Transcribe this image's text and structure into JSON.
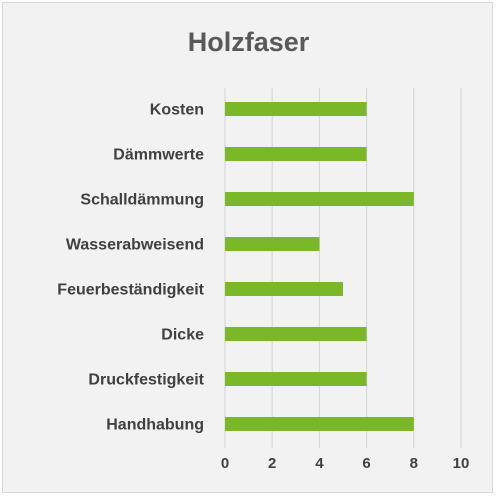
{
  "chart_data": {
    "type": "bar",
    "orientation": "horizontal",
    "title": "Holzfaser",
    "categories": [
      "Kosten",
      "Dämmwerte",
      "Schalldämmung",
      "Wasserabweisend",
      "Feuerbeständigkeit",
      "Dicke",
      "Druckfestigkeit",
      "Handhabung"
    ],
    "values": [
      6,
      6,
      8,
      4,
      5,
      6,
      6,
      8
    ],
    "xlim": [
      0,
      10
    ],
    "xticks": [
      "0",
      "2",
      "4",
      "6",
      "8",
      "10"
    ],
    "xlabel": "",
    "ylabel": "",
    "grid": "vertical",
    "legend": "none",
    "bar_color": "#7ab829",
    "grid_color": "#d9d9d9",
    "background_color": "#f2f2f2"
  }
}
